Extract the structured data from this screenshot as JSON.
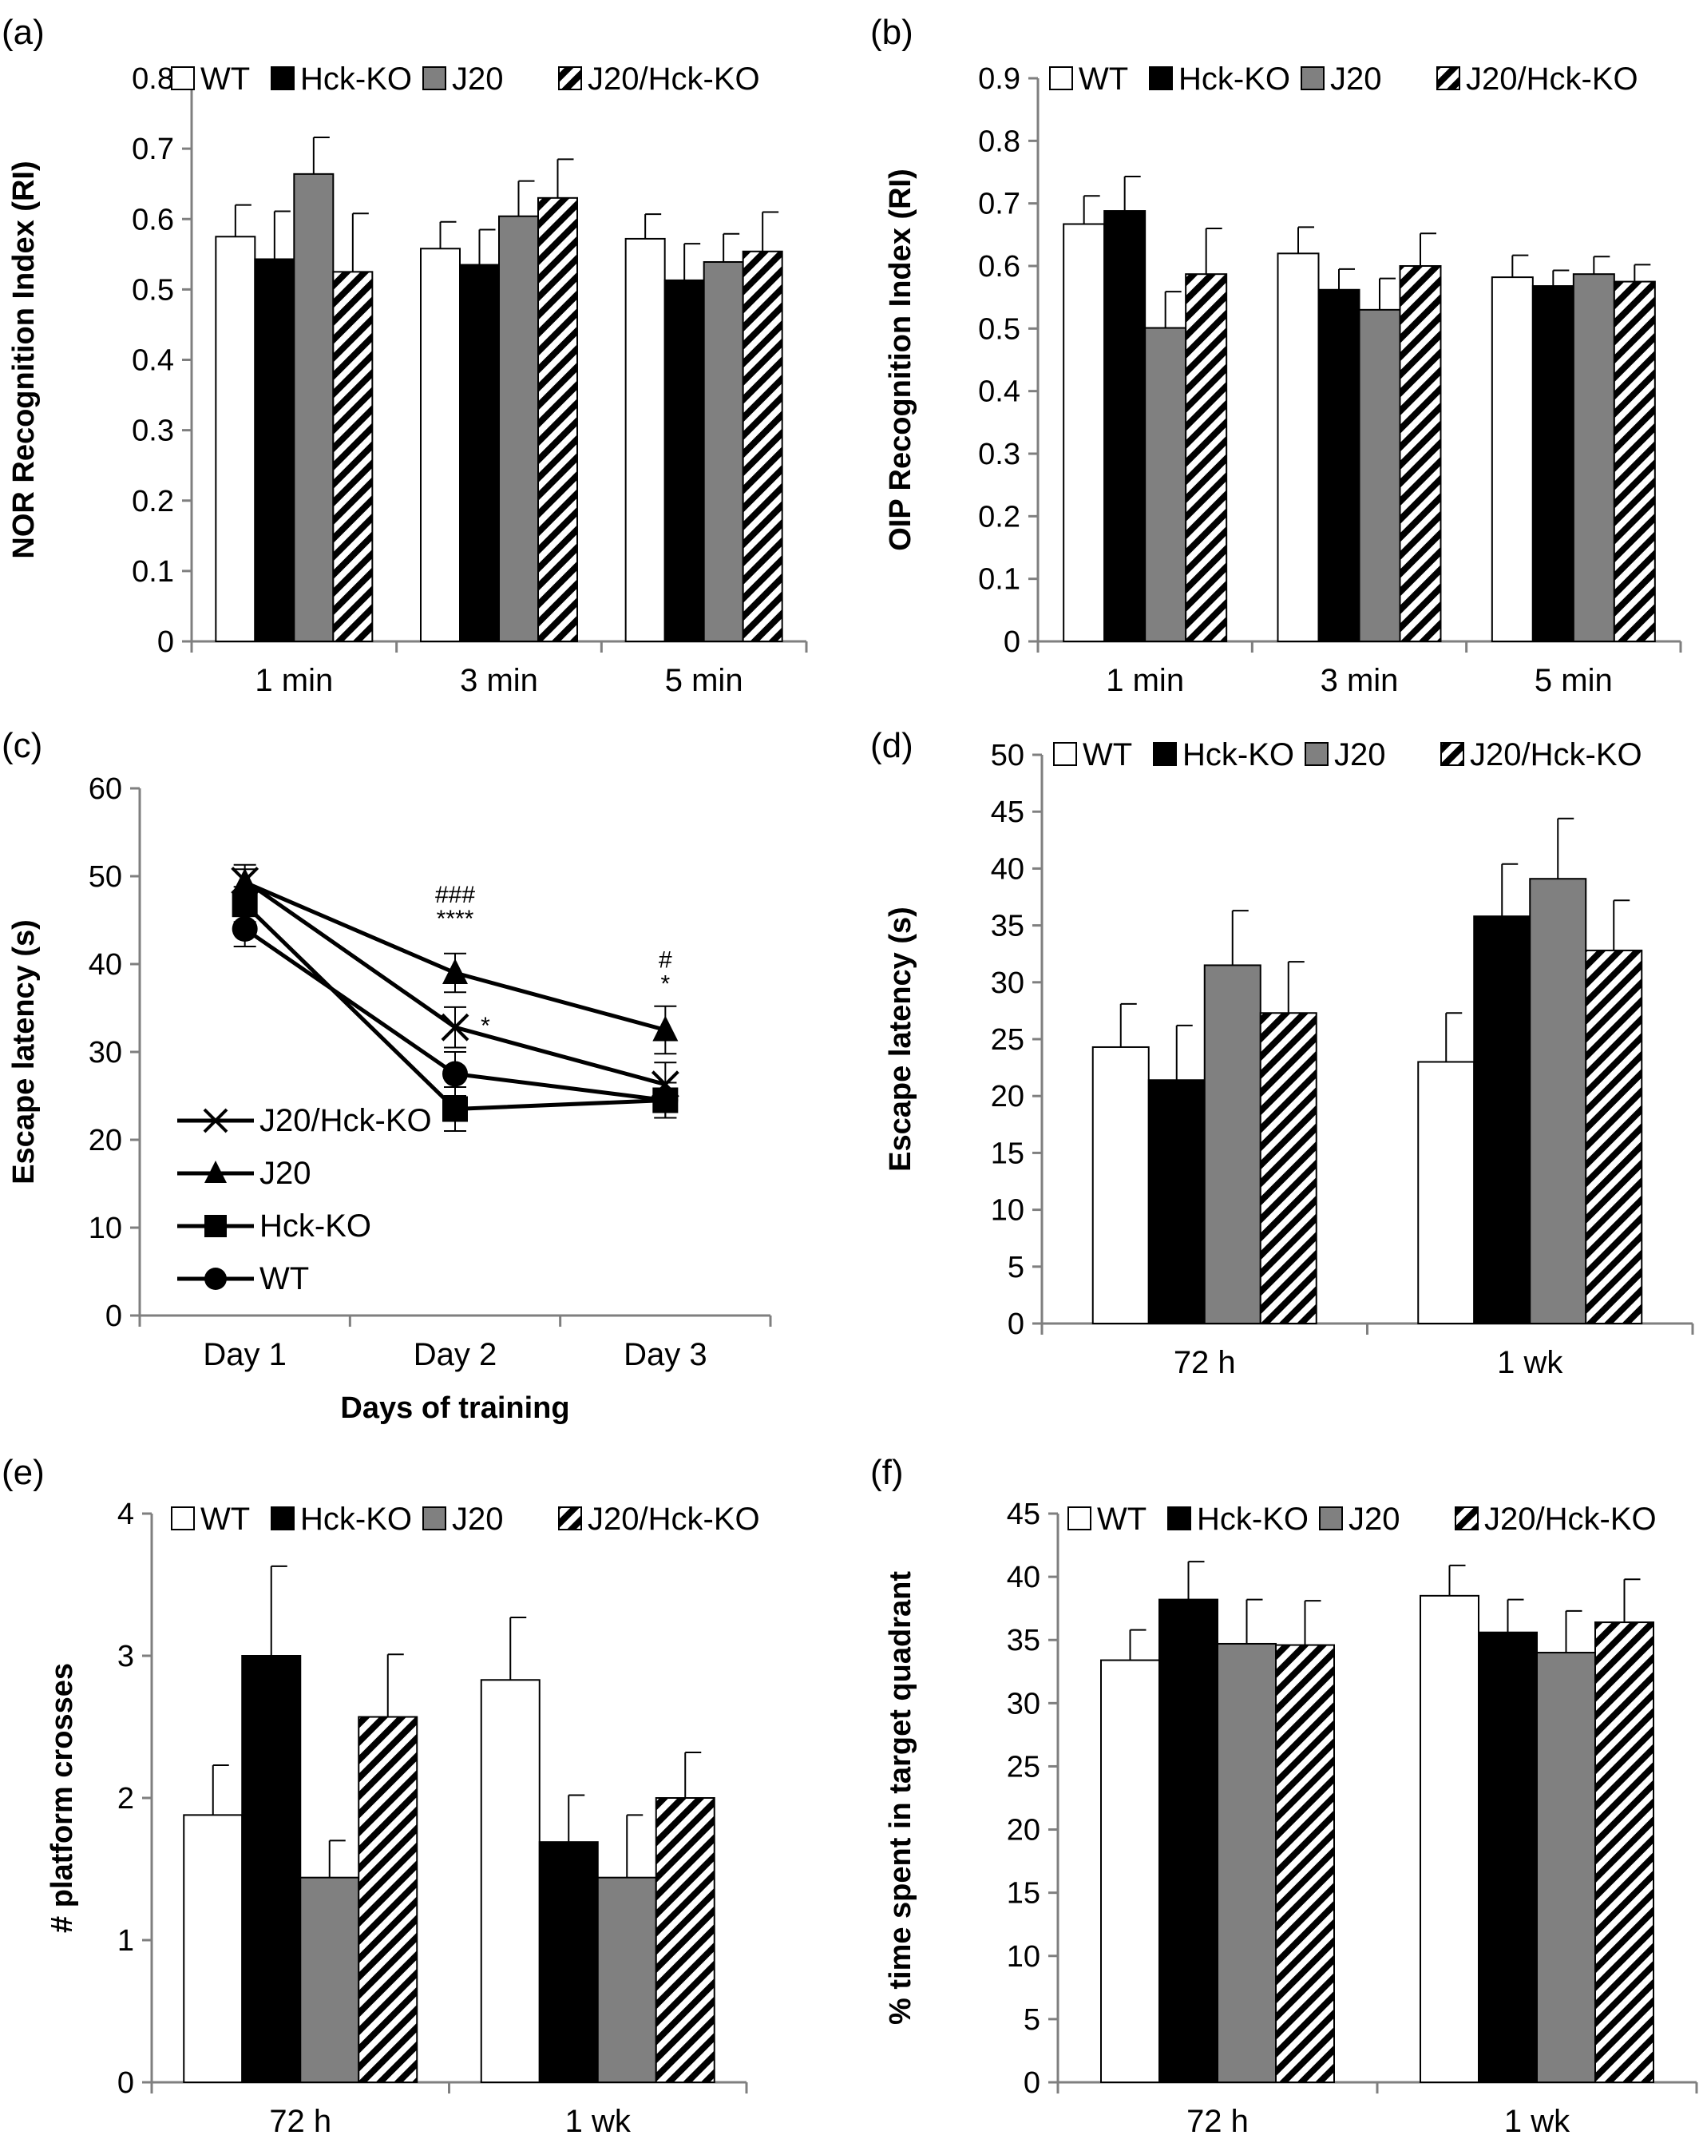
{
  "figure": {
    "panels": [
      "(a)",
      "(b)",
      "(c)",
      "(d)",
      "(e)",
      "(f)"
    ]
  },
  "colors": {
    "WT": "#ffffff",
    "Hck-KO": "#000000",
    "J20": "#808080",
    "J20/Hck-KO": "hatched black/white",
    "axis": "#7f7f7f"
  },
  "chart_data": [
    {
      "panel": "(a)",
      "type": "bar",
      "title": "",
      "xlabel": "",
      "ylabel": "NOR Recognition Index (RI)",
      "ylim": [
        0,
        0.8
      ],
      "yticks": [
        "0",
        "0.1",
        "0.2",
        "0.3",
        "0.4",
        "0.5",
        "0.6",
        "0.7",
        "0.8"
      ],
      "categories": [
        "1 min",
        "3 min",
        "5 min"
      ],
      "legend_position": "top",
      "series": [
        {
          "name": "WT",
          "values": [
            0.575,
            0.558,
            0.572
          ],
          "errors": [
            0.045,
            0.038,
            0.035
          ]
        },
        {
          "name": "Hck-KO",
          "values": [
            0.543,
            0.535,
            0.513
          ],
          "errors": [
            0.068,
            0.05,
            0.052
          ]
        },
        {
          "name": "J20",
          "values": [
            0.664,
            0.604,
            0.539
          ],
          "errors": [
            0.052,
            0.05,
            0.04
          ]
        },
        {
          "name": "J20/Hck-KO",
          "values": [
            0.525,
            0.63,
            0.554
          ],
          "errors": [
            0.083,
            0.055,
            0.056
          ]
        }
      ]
    },
    {
      "panel": "(b)",
      "type": "bar",
      "title": "",
      "xlabel": "",
      "ylabel": "OIP Recognition Index (RI)",
      "ylim": [
        0,
        0.9
      ],
      "yticks": [
        "0",
        "0.1",
        "0.2",
        "0.3",
        "0.4",
        "0.5",
        "0.6",
        "0.7",
        "0.8",
        "0.9"
      ],
      "categories": [
        "1 min",
        "3 min",
        "5 min"
      ],
      "legend_position": "top",
      "series": [
        {
          "name": "WT",
          "values": [
            0.667,
            0.62,
            0.582
          ],
          "errors": [
            0.045,
            0.042,
            0.035
          ]
        },
        {
          "name": "Hck-KO",
          "values": [
            0.688,
            0.562,
            0.568
          ],
          "errors": [
            0.055,
            0.033,
            0.025
          ]
        },
        {
          "name": "J20",
          "values": [
            0.501,
            0.53,
            0.587
          ],
          "errors": [
            0.058,
            0.05,
            0.028
          ]
        },
        {
          "name": "J20/Hck-KO",
          "values": [
            0.587,
            0.6,
            0.575
          ],
          "errors": [
            0.073,
            0.052,
            0.027
          ]
        }
      ]
    },
    {
      "panel": "(c)",
      "type": "line",
      "title": "",
      "xlabel": "Days of training",
      "ylabel": "Escape latency (s)",
      "ylim": [
        0,
        60
      ],
      "yticks": [
        "0",
        "10",
        "20",
        "30",
        "40",
        "50",
        "60"
      ],
      "categories": [
        "Day 1",
        "Day 2",
        "Day 3"
      ],
      "legend_position": "bottom-left",
      "series": [
        {
          "name": "J20/Hck-KO",
          "marker": "x",
          "values": [
            49.5,
            32.8,
            26.3
          ],
          "errors": [
            1.8,
            2.3,
            2.5
          ]
        },
        {
          "name": "J20",
          "marker": "triangle",
          "values": [
            49.3,
            39.0,
            32.5
          ],
          "errors": [
            1.5,
            2.2,
            2.7
          ]
        },
        {
          "name": "Hck-KO",
          "marker": "square",
          "values": [
            46.8,
            23.5,
            24.5
          ],
          "errors": [
            2.0,
            2.5,
            2.0
          ]
        },
        {
          "name": "WT",
          "marker": "circle",
          "values": [
            44.0,
            27.5,
            24.5
          ],
          "errors": [
            2.0,
            2.5,
            2.0
          ]
        }
      ],
      "annotations": [
        {
          "category": "Day 2",
          "lines": [
            "###",
            "****"
          ]
        },
        {
          "category": "Day 2",
          "lines": [
            "*"
          ]
        },
        {
          "category": "Day 3",
          "lines": [
            "#",
            "*"
          ]
        }
      ]
    },
    {
      "panel": "(d)",
      "type": "bar",
      "title": "",
      "xlabel": "",
      "ylabel": "Escape latency (s)",
      "ylim": [
        0,
        50
      ],
      "yticks": [
        "0",
        "5",
        "10",
        "15",
        "20",
        "25",
        "30",
        "35",
        "40",
        "45",
        "50"
      ],
      "categories": [
        "72 h",
        "1 wk"
      ],
      "legend_position": "top",
      "series": [
        {
          "name": "WT",
          "values": [
            24.3,
            23.0
          ],
          "errors": [
            3.8,
            4.3
          ]
        },
        {
          "name": "Hck-KO",
          "values": [
            21.4,
            35.8
          ],
          "errors": [
            4.8,
            4.6
          ]
        },
        {
          "name": "J20",
          "values": [
            31.5,
            39.1
          ],
          "errors": [
            4.8,
            5.3
          ]
        },
        {
          "name": "J20/Hck-KO",
          "values": [
            27.3,
            32.8
          ],
          "errors": [
            4.5,
            4.4
          ]
        }
      ]
    },
    {
      "panel": "(e)",
      "type": "bar",
      "title": "",
      "xlabel": "",
      "ylabel": "# platform crosses",
      "ylim": [
        0,
        4
      ],
      "yticks": [
        "0",
        "1",
        "2",
        "3",
        "4"
      ],
      "categories": [
        "72 h",
        "1 wk"
      ],
      "legend_position": "top",
      "series": [
        {
          "name": "WT",
          "values": [
            1.88,
            2.83
          ],
          "errors": [
            0.35,
            0.44
          ]
        },
        {
          "name": "Hck-KO",
          "values": [
            3.0,
            1.69
          ],
          "errors": [
            0.63,
            0.33
          ]
        },
        {
          "name": "J20",
          "values": [
            1.44,
            1.44
          ],
          "errors": [
            0.26,
            0.44
          ]
        },
        {
          "name": "J20/Hck-KO",
          "values": [
            2.57,
            2.0
          ],
          "errors": [
            0.44,
            0.32
          ]
        }
      ]
    },
    {
      "panel": "(f)",
      "type": "bar",
      "title": "",
      "xlabel": "",
      "ylabel": "% time spent in target quadrant",
      "ylim": [
        0,
        45
      ],
      "yticks": [
        "0",
        "5",
        "10",
        "15",
        "20",
        "25",
        "30",
        "35",
        "40",
        "45"
      ],
      "categories": [
        "72 h",
        "1 wk"
      ],
      "legend_position": "top",
      "series": [
        {
          "name": "WT",
          "values": [
            33.4,
            38.5
          ],
          "errors": [
            2.4,
            2.4
          ]
        },
        {
          "name": "Hck-KO",
          "values": [
            38.2,
            35.6
          ],
          "errors": [
            3.0,
            2.6
          ]
        },
        {
          "name": "J20",
          "values": [
            34.7,
            34.0
          ],
          "errors": [
            3.5,
            3.3
          ]
        },
        {
          "name": "J20/Hck-KO",
          "values": [
            34.6,
            36.4
          ],
          "errors": [
            3.5,
            3.4
          ]
        }
      ]
    }
  ]
}
